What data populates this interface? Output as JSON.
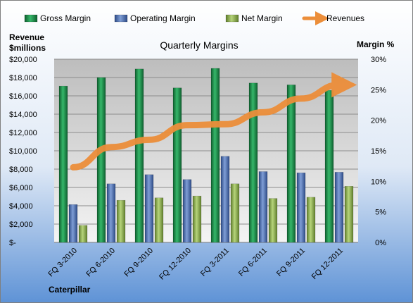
{
  "chart_data": {
    "type": "bar",
    "title": "Quarterly Margins",
    "ylabel_left": [
      "Revenue",
      "$millions"
    ],
    "ylabel_right": "Margin %",
    "footer_label": "Caterpillar",
    "categories": [
      "FQ 3-2010",
      "FQ 6-2010",
      "FQ 9-2010",
      "FQ 12-2010",
      "FQ 3-2011",
      "FQ 6-2011",
      "FQ 9-2011",
      "FQ 12-2011"
    ],
    "y_left": {
      "min": 0,
      "max": 20000,
      "step": 2000,
      "tick_labels": [
        "$-",
        "$2,000",
        "$4,000",
        "$6,000",
        "$8,000",
        "$10,000",
        "$12,000",
        "$14,000",
        "$16,000",
        "$18,000",
        "$20,000"
      ]
    },
    "y_right": {
      "min": 0,
      "max": 30,
      "step": 5,
      "tick_labels": [
        "0%",
        "5%",
        "10%",
        "15%",
        "20%",
        "25%",
        "30%"
      ]
    },
    "grid": true,
    "legend_position": "top",
    "series": [
      {
        "name": "Gross Margin",
        "axis": "right",
        "kind": "bar",
        "color": "#1e8e4b",
        "values": [
          25.6,
          27.0,
          28.4,
          25.3,
          28.5,
          26.1,
          25.8,
          24.9
        ]
      },
      {
        "name": "Operating Margin",
        "axis": "right",
        "kind": "bar",
        "color": "#4f6fb3",
        "values": [
          6.2,
          9.6,
          11.1,
          10.3,
          14.1,
          11.6,
          11.4,
          11.5
        ]
      },
      {
        "name": "Net Margin",
        "axis": "right",
        "kind": "bar",
        "color": "#8db14b",
        "values": [
          2.8,
          6.9,
          7.3,
          7.6,
          9.6,
          7.2,
          7.4,
          9.2
        ]
      },
      {
        "name": "Revenues",
        "axis": "left",
        "kind": "line",
        "color": "#ec8e3a",
        "values": [
          8200,
          10400,
          11200,
          12800,
          12900,
          14200,
          15700,
          17200
        ]
      }
    ]
  }
}
